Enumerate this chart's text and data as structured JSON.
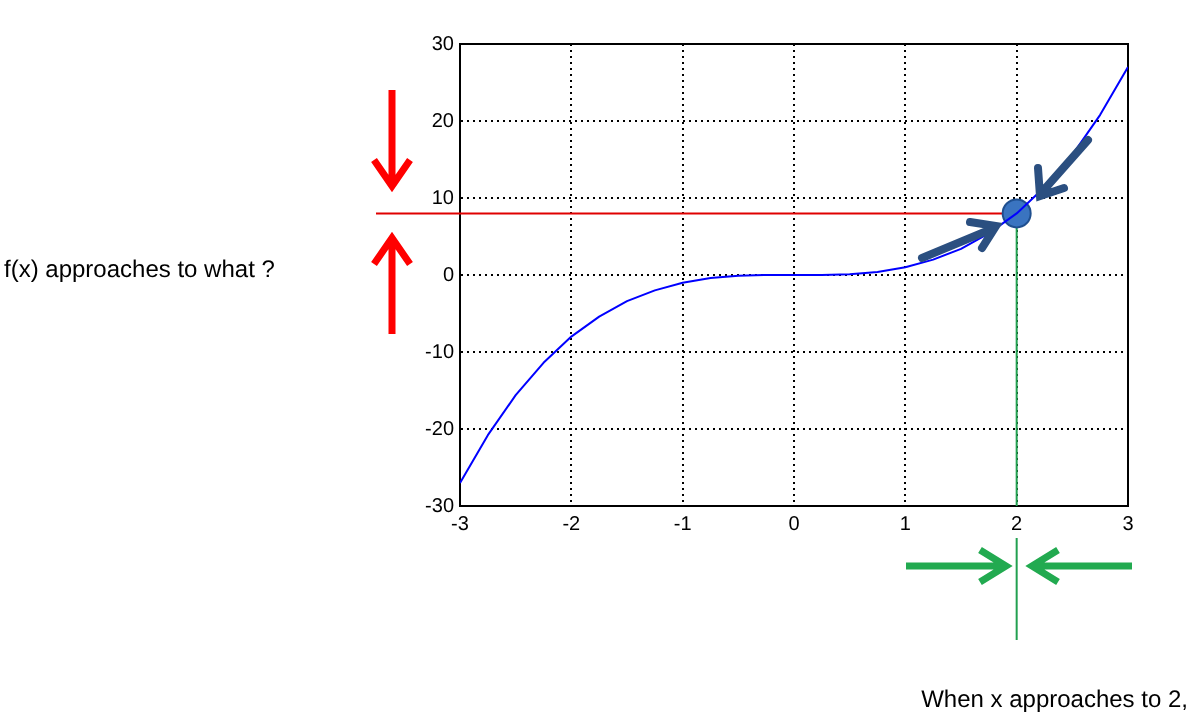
{
  "chart_data": {
    "type": "line",
    "x": [
      -3,
      -2.75,
      -2.5,
      -2.25,
      -2,
      -1.75,
      -1.5,
      -1.25,
      -1,
      -0.75,
      -0.5,
      -0.25,
      0,
      0.25,
      0.5,
      0.75,
      1,
      1.25,
      1.5,
      1.75,
      2,
      2.25,
      2.5,
      2.75,
      3
    ],
    "series": [
      {
        "color": "#0000ff",
        "marker": "none",
        "values": [
          -27,
          -20.8,
          -15.6,
          -11.4,
          -8,
          -5.4,
          -3.4,
          -2,
          -1,
          -0.4,
          -0.1,
          0,
          0,
          0,
          0.1,
          0.4,
          1,
          2,
          3.4,
          5.4,
          8,
          11.4,
          15.6,
          20.8,
          27
        ]
      },
      {
        "type": "scatter",
        "color": "#3a74c0",
        "marker": "circle",
        "x": [
          2
        ],
        "values": [
          8
        ]
      }
    ],
    "xlim": [
      -3,
      3
    ],
    "xticks": [
      -3,
      -2,
      -1,
      0,
      1,
      2,
      3
    ],
    "ylim": [
      -30,
      30
    ],
    "yticks": [
      -30,
      -20,
      -10,
      0,
      10,
      20,
      30
    ],
    "grid": true,
    "legend": false,
    "ref_lines": [
      {
        "axis": "y",
        "value": 8,
        "color": "#e00000"
      },
      {
        "axis": "x",
        "value": 2,
        "color": "#22a050"
      }
    ],
    "annotations": [
      "f(x) approaches to what ?",
      "When x approaches to 2,"
    ]
  }
}
